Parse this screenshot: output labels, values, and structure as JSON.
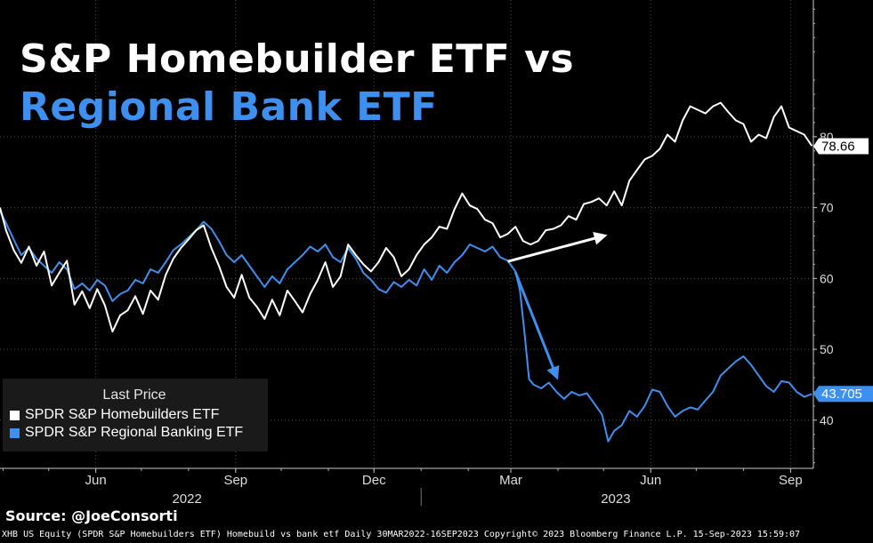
{
  "title": {
    "line1": "S&P Homebuilder ETF vs",
    "line2": "Regional Bank ETF"
  },
  "colors": {
    "background": "#000000",
    "homebuilders": "#ffffff",
    "regional_banks": "#3d8ff0",
    "grid": "#4a4a4a"
  },
  "legend": {
    "title": "Last Price",
    "items": [
      {
        "label": "SPDR S&P Homebuilders ETF",
        "color": "#ffffff"
      },
      {
        "label": "SPDR S&P Regional Banking ETF",
        "color": "#3d8ff0"
      }
    ]
  },
  "source": "Source:  @JoeConsorti",
  "footer": "XHB US Equity (SPDR S&P Homebuilders ETF) Homebuild vs bank etf  Daily 30MAR2022-16SEP2023 Copyright© 2023 Bloomberg Finance L.P.  15-Sep-2023 15:59:07",
  "chart_data": {
    "type": "line",
    "x_range": [
      "2022-03-30",
      "2023-09-16"
    ],
    "x_ticks": [
      {
        "label": "Jun",
        "date": "2022-06-01"
      },
      {
        "label": "Sep",
        "date": "2022-09-01"
      },
      {
        "label": "Dec",
        "date": "2022-12-01"
      },
      {
        "label": "Mar",
        "date": "2023-03-01"
      },
      {
        "label": "Jun",
        "date": "2023-06-01"
      },
      {
        "label": "Sep",
        "date": "2023-09-01"
      }
    ],
    "year_labels": [
      {
        "label": "2022",
        "date": "2022-07-31"
      },
      {
        "label": "2023",
        "date": "2023-05-09"
      }
    ],
    "y_axis": {
      "side": "right",
      "ticks": [
        40,
        50,
        60,
        70,
        80
      ],
      "ylim": [
        33.2,
        99.3
      ]
    },
    "grid": true,
    "legend_placement": "bottom-left",
    "last_values": [
      {
        "series": "SPDR S&P Homebuilders ETF",
        "label": "78.66",
        "value": 78.66
      },
      {
        "series": "SPDR S&P Regional Banking ETF",
        "label": "43.705",
        "value": 43.705
      }
    ],
    "series": [
      {
        "name": "SPDR S&P Homebuilders ETF",
        "color": "#ffffff",
        "points": [
          [
            "2022-03-30",
            70.0
          ],
          [
            "2022-04-03",
            66.8
          ],
          [
            "2022-04-08",
            64.0
          ],
          [
            "2022-04-13",
            62.2
          ],
          [
            "2022-04-18",
            64.5
          ],
          [
            "2022-04-23",
            61.8
          ],
          [
            "2022-04-28",
            63.8
          ],
          [
            "2022-05-03",
            59.0
          ],
          [
            "2022-05-08",
            60.8
          ],
          [
            "2022-05-13",
            62.5
          ],
          [
            "2022-05-18",
            56.3
          ],
          [
            "2022-05-23",
            58.2
          ],
          [
            "2022-05-28",
            55.8
          ],
          [
            "2022-06-02",
            58.5
          ],
          [
            "2022-06-07",
            56.2
          ],
          [
            "2022-06-12",
            52.5
          ],
          [
            "2022-06-17",
            54.8
          ],
          [
            "2022-06-22",
            55.5
          ],
          [
            "2022-06-27",
            57.5
          ],
          [
            "2022-07-02",
            55.0
          ],
          [
            "2022-07-07",
            58.3
          ],
          [
            "2022-07-12",
            57.0
          ],
          [
            "2022-07-17",
            60.5
          ],
          [
            "2022-07-22",
            62.8
          ],
          [
            "2022-07-27",
            64.3
          ],
          [
            "2022-08-01",
            65.5
          ],
          [
            "2022-08-06",
            66.8
          ],
          [
            "2022-08-11",
            67.5
          ],
          [
            "2022-08-16",
            64.3
          ],
          [
            "2022-08-21",
            61.8
          ],
          [
            "2022-08-26",
            58.8
          ],
          [
            "2022-08-31",
            57.3
          ],
          [
            "2022-09-05",
            60.5
          ],
          [
            "2022-09-10",
            57.3
          ],
          [
            "2022-09-15",
            56.0
          ],
          [
            "2022-09-20",
            54.3
          ],
          [
            "2022-09-25",
            57.0
          ],
          [
            "2022-09-30",
            54.8
          ],
          [
            "2022-10-05",
            58.3
          ],
          [
            "2022-10-10",
            56.8
          ],
          [
            "2022-10-15",
            55.2
          ],
          [
            "2022-10-20",
            57.8
          ],
          [
            "2022-10-25",
            59.8
          ],
          [
            "2022-10-30",
            62.3
          ],
          [
            "2022-11-04",
            58.8
          ],
          [
            "2022-11-09",
            60.3
          ],
          [
            "2022-11-14",
            64.8
          ],
          [
            "2022-11-19",
            63.3
          ],
          [
            "2022-11-24",
            62.0
          ],
          [
            "2022-11-29",
            61.0
          ],
          [
            "2022-12-04",
            62.3
          ],
          [
            "2022-12-09",
            64.3
          ],
          [
            "2022-12-14",
            63.0
          ],
          [
            "2022-12-19",
            60.3
          ],
          [
            "2022-12-24",
            61.3
          ],
          [
            "2022-12-29",
            63.3
          ],
          [
            "2023-01-03",
            64.8
          ],
          [
            "2023-01-08",
            65.8
          ],
          [
            "2023-01-13",
            67.3
          ],
          [
            "2023-01-18",
            67.0
          ],
          [
            "2023-01-23",
            69.8
          ],
          [
            "2023-01-28",
            72.0
          ],
          [
            "2023-02-02",
            70.3
          ],
          [
            "2023-02-07",
            69.8
          ],
          [
            "2023-02-12",
            68.3
          ],
          [
            "2023-02-17",
            67.8
          ],
          [
            "2023-02-22",
            65.8
          ],
          [
            "2023-02-27",
            66.3
          ],
          [
            "2023-03-04",
            67.3
          ],
          [
            "2023-03-09",
            65.3
          ],
          [
            "2023-03-14",
            64.8
          ],
          [
            "2023-03-19",
            65.3
          ],
          [
            "2023-03-24",
            66.8
          ],
          [
            "2023-03-29",
            67.0
          ],
          [
            "2023-04-03",
            67.5
          ],
          [
            "2023-04-08",
            68.8
          ],
          [
            "2023-04-13",
            68.3
          ],
          [
            "2023-04-18",
            70.5
          ],
          [
            "2023-04-23",
            70.8
          ],
          [
            "2023-04-28",
            71.3
          ],
          [
            "2023-05-03",
            70.3
          ],
          [
            "2023-05-08",
            72.3
          ],
          [
            "2023-05-13",
            70.3
          ],
          [
            "2023-05-18",
            73.8
          ],
          [
            "2023-05-23",
            75.3
          ],
          [
            "2023-05-28",
            76.8
          ],
          [
            "2023-06-02",
            77.3
          ],
          [
            "2023-06-07",
            78.3
          ],
          [
            "2023-06-12",
            80.3
          ],
          [
            "2023-06-17",
            79.3
          ],
          [
            "2023-06-22",
            82.3
          ],
          [
            "2023-06-27",
            84.3
          ],
          [
            "2023-07-02",
            83.8
          ],
          [
            "2023-07-07",
            83.3
          ],
          [
            "2023-07-12",
            84.3
          ],
          [
            "2023-07-17",
            84.8
          ],
          [
            "2023-07-22",
            83.5
          ],
          [
            "2023-07-27",
            82.3
          ],
          [
            "2023-08-01",
            81.8
          ],
          [
            "2023-08-06",
            79.3
          ],
          [
            "2023-08-11",
            80.3
          ],
          [
            "2023-08-16",
            79.8
          ],
          [
            "2023-08-21",
            82.8
          ],
          [
            "2023-08-26",
            84.3
          ],
          [
            "2023-08-31",
            81.3
          ],
          [
            "2023-09-05",
            80.8
          ],
          [
            "2023-09-10",
            80.3
          ],
          [
            "2023-09-15",
            78.7
          ]
        ]
      },
      {
        "name": "SPDR S&P Regional Banking ETF",
        "color": "#3d8ff0",
        "points": [
          [
            "2022-03-30",
            69.5
          ],
          [
            "2022-04-03",
            67.8
          ],
          [
            "2022-04-08",
            65.5
          ],
          [
            "2022-04-13",
            63.3
          ],
          [
            "2022-04-18",
            64.3
          ],
          [
            "2022-04-23",
            62.8
          ],
          [
            "2022-04-28",
            61.8
          ],
          [
            "2022-05-03",
            60.8
          ],
          [
            "2022-05-08",
            62.3
          ],
          [
            "2022-05-13",
            61.3
          ],
          [
            "2022-05-18",
            58.5
          ],
          [
            "2022-05-23",
            59.3
          ],
          [
            "2022-05-28",
            58.3
          ],
          [
            "2022-06-02",
            59.8
          ],
          [
            "2022-06-07",
            59.0
          ],
          [
            "2022-06-12",
            56.8
          ],
          [
            "2022-06-17",
            57.8
          ],
          [
            "2022-06-22",
            58.3
          ],
          [
            "2022-06-27",
            59.8
          ],
          [
            "2022-07-02",
            59.3
          ],
          [
            "2022-07-07",
            61.3
          ],
          [
            "2022-07-12",
            60.8
          ],
          [
            "2022-07-17",
            62.3
          ],
          [
            "2022-07-22",
            64.0
          ],
          [
            "2022-07-27",
            64.8
          ],
          [
            "2022-08-01",
            65.8
          ],
          [
            "2022-08-06",
            66.8
          ],
          [
            "2022-08-11",
            68.0
          ],
          [
            "2022-08-16",
            67.0
          ],
          [
            "2022-08-21",
            65.3
          ],
          [
            "2022-08-26",
            63.3
          ],
          [
            "2022-08-31",
            62.3
          ],
          [
            "2022-09-05",
            63.3
          ],
          [
            "2022-09-10",
            61.8
          ],
          [
            "2022-09-15",
            60.3
          ],
          [
            "2022-09-20",
            58.8
          ],
          [
            "2022-09-25",
            60.3
          ],
          [
            "2022-09-30",
            59.3
          ],
          [
            "2022-10-05",
            61.3
          ],
          [
            "2022-10-10",
            62.3
          ],
          [
            "2022-10-15",
            63.3
          ],
          [
            "2022-10-20",
            64.5
          ],
          [
            "2022-10-25",
            63.8
          ],
          [
            "2022-10-30",
            64.8
          ],
          [
            "2022-11-04",
            63.0
          ],
          [
            "2022-11-09",
            62.3
          ],
          [
            "2022-11-14",
            64.3
          ],
          [
            "2022-11-19",
            62.8
          ],
          [
            "2022-11-24",
            60.8
          ],
          [
            "2022-11-29",
            59.8
          ],
          [
            "2022-12-04",
            58.5
          ],
          [
            "2022-12-09",
            58.0
          ],
          [
            "2022-12-14",
            59.5
          ],
          [
            "2022-12-19",
            58.8
          ],
          [
            "2022-12-24",
            59.8
          ],
          [
            "2022-12-29",
            59.0
          ],
          [
            "2023-01-03",
            61.3
          ],
          [
            "2023-01-08",
            59.8
          ],
          [
            "2023-01-13",
            61.8
          ],
          [
            "2023-01-18",
            60.8
          ],
          [
            "2023-01-23",
            62.3
          ],
          [
            "2023-01-28",
            63.3
          ],
          [
            "2023-02-02",
            64.8
          ],
          [
            "2023-02-07",
            64.3
          ],
          [
            "2023-02-12",
            63.8
          ],
          [
            "2023-02-17",
            64.5
          ],
          [
            "2023-02-22",
            63.0
          ],
          [
            "2023-02-27",
            62.5
          ],
          [
            "2023-03-04",
            61.0
          ],
          [
            "2023-03-07",
            58.3
          ],
          [
            "2023-03-10",
            52.3
          ],
          [
            "2023-03-13",
            45.8
          ],
          [
            "2023-03-16",
            45.0
          ],
          [
            "2023-03-21",
            44.5
          ],
          [
            "2023-03-26",
            45.3
          ],
          [
            "2023-03-31",
            44.0
          ],
          [
            "2023-04-05",
            43.0
          ],
          [
            "2023-04-10",
            44.0
          ],
          [
            "2023-04-15",
            43.5
          ],
          [
            "2023-04-20",
            43.8
          ],
          [
            "2023-04-25",
            42.3
          ],
          [
            "2023-04-30",
            40.8
          ],
          [
            "2023-05-04",
            37.0
          ],
          [
            "2023-05-08",
            38.5
          ],
          [
            "2023-05-13",
            39.3
          ],
          [
            "2023-05-18",
            41.3
          ],
          [
            "2023-05-23",
            40.5
          ],
          [
            "2023-05-28",
            42.0
          ],
          [
            "2023-06-02",
            44.3
          ],
          [
            "2023-06-07",
            44.0
          ],
          [
            "2023-06-12",
            42.0
          ],
          [
            "2023-06-17",
            40.5
          ],
          [
            "2023-06-22",
            41.3
          ],
          [
            "2023-06-27",
            41.8
          ],
          [
            "2023-07-02",
            41.5
          ],
          [
            "2023-07-07",
            42.8
          ],
          [
            "2023-07-12",
            44.0
          ],
          [
            "2023-07-17",
            46.3
          ],
          [
            "2023-07-22",
            47.3
          ],
          [
            "2023-07-27",
            48.3
          ],
          [
            "2023-08-01",
            49.0
          ],
          [
            "2023-08-06",
            47.8
          ],
          [
            "2023-08-11",
            46.3
          ],
          [
            "2023-08-16",
            44.8
          ],
          [
            "2023-08-21",
            44.0
          ],
          [
            "2023-08-26",
            45.5
          ],
          [
            "2023-08-31",
            45.3
          ],
          [
            "2023-09-05",
            44.0
          ],
          [
            "2023-09-10",
            43.3
          ],
          [
            "2023-09-15",
            43.7
          ]
        ]
      }
    ],
    "annotations": [
      {
        "type": "arrow",
        "color": "#ffffff",
        "from": [
          "2023-02-27",
          62.4
        ],
        "to": [
          "2023-05-01",
          66.0
        ]
      },
      {
        "type": "arrow",
        "color": "#3d8ff0",
        "from": [
          "2023-03-04",
          60.9
        ],
        "to": [
          "2023-03-31",
          46.2
        ]
      }
    ]
  }
}
